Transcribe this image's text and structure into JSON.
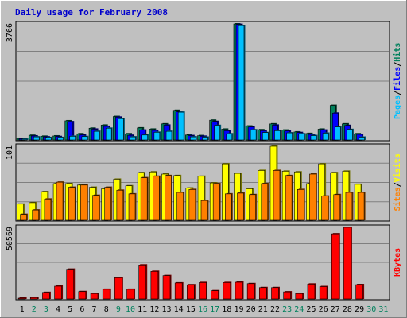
{
  "chart_data": {
    "type": "bar",
    "title": "Daily usage for February 2008",
    "x": [
      "1",
      "2",
      "3",
      "4",
      "5",
      "6",
      "7",
      "8",
      "9",
      "10",
      "11",
      "12",
      "13",
      "14",
      "15",
      "16",
      "17",
      "18",
      "19",
      "20",
      "21",
      "22",
      "23",
      "24",
      "25",
      "26",
      "27",
      "28",
      "29",
      "30",
      "31"
    ],
    "weekend_days": [
      "2",
      "3",
      "9",
      "10",
      "16",
      "17",
      "23",
      "24",
      "30",
      "31"
    ],
    "colors": {
      "hits": "#00805C",
      "files": "#0000FF",
      "pages": "#00C0FF",
      "visits": "#FFFF00",
      "sites": "#FF8000",
      "kbytes": "#FF0000",
      "weekday_label": "#000000",
      "weekend_label": "#00805C"
    },
    "panels": [
      {
        "name": "usage",
        "max_label": "3766",
        "ylim": [
          0,
          3766
        ],
        "legend": [
          {
            "text": "Pages",
            "color": "#00C0FF"
          },
          {
            "text": "/",
            "color": "#000000"
          },
          {
            "text": "Files",
            "color": "#0000FF"
          },
          {
            "text": "/",
            "color": "#000000"
          },
          {
            "text": "Hits",
            "color": "#00805C"
          }
        ],
        "series": [
          {
            "name": "Hits",
            "values": [
              50,
              150,
              120,
              130,
              620,
              200,
              380,
              480,
              760,
              200,
              390,
              350,
              520,
              960,
              160,
              140,
              640,
              350,
              3766,
              450,
              330,
              520,
              320,
              260,
              210,
              350,
              1120,
              520,
              200,
              null,
              null
            ]
          },
          {
            "name": "Files",
            "values": [
              40,
              130,
              100,
              110,
              590,
              160,
              350,
              440,
              740,
              150,
              320,
              310,
              480,
              910,
              140,
              120,
              600,
              300,
              3750,
              420,
              300,
              480,
              290,
              240,
              180,
              320,
              870,
              470,
              180,
              null,
              null
            ]
          },
          {
            "name": "Pages",
            "values": [
              25,
              100,
              80,
              80,
              120,
              110,
              280,
              380,
              690,
              100,
              160,
              250,
              280,
              900,
              100,
              90,
              470,
              200,
              3710,
              330,
              240,
              300,
              230,
              200,
              140,
              220,
              420,
              340,
              90,
              null,
              null
            ]
          }
        ]
      },
      {
        "name": "visits",
        "max_label": "101",
        "ylim": [
          0,
          101
        ],
        "legend": [
          {
            "text": "Sites",
            "color": "#FF8000"
          },
          {
            "text": "/",
            "color": "#000000"
          },
          {
            "text": "Visits",
            "color": "#FFFF00"
          }
        ],
        "series": [
          {
            "name": "Visits",
            "values": [
              22,
              24,
              39,
              50,
              50,
              48,
              45,
              43,
              56,
              47,
              65,
              66,
              63,
              61,
              44,
              60,
              51,
              77,
              64,
              43,
              68,
              101,
              67,
              66,
              50,
              77,
              65,
              67,
              49,
              null,
              null
            ]
          },
          {
            "name": "Sites",
            "values": [
              8,
              14,
              29,
              52,
              45,
              48,
              34,
              45,
              41,
              36,
              58,
              60,
              61,
              38,
              42,
              27,
              50,
              36,
              37,
              35,
              50,
              68,
              61,
              42,
              63,
              33,
              35,
              38,
              38,
              null,
              null
            ]
          }
        ]
      },
      {
        "name": "kbytes",
        "max_label": "50569",
        "ylim": [
          0,
          50569
        ],
        "legend": [
          {
            "text": "KBytes",
            "color": "#FF0000"
          }
        ],
        "series": [
          {
            "name": "KBytes",
            "values": [
              500,
              1000,
              4600,
              9000,
              21000,
              5200,
              3800,
              6800,
              15000,
              6800,
              24000,
              19500,
              16500,
              11300,
              10000,
              11600,
              5800,
              11600,
              11800,
              10800,
              8000,
              8000,
              5000,
              3800,
              10500,
              8700,
              46000,
              50569,
              10100,
              null,
              null
            ]
          }
        ]
      }
    ]
  }
}
